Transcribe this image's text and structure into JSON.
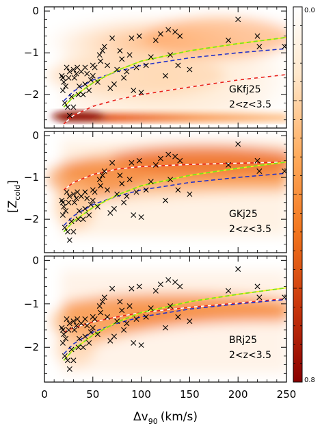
{
  "chart_data": {
    "type": "scatter",
    "xlabel": "Δv",
    "xlabel_sub": "90",
    "xlabel_unit": "(km/s)",
    "ylabel": "[Z",
    "ylabel_sub": "cold",
    "ylabel_close": "]",
    "xlim": [
      0,
      250
    ],
    "ylim": [
      -2.8,
      0.1
    ],
    "x_ticks": [
      0,
      50,
      100,
      150,
      200,
      250
    ],
    "y_ticks": [
      0,
      -1,
      -2
    ],
    "colorbar": {
      "min_label": "0.0",
      "max_label": "0.8",
      "range": [
        0.0,
        0.8
      ],
      "colormap": "white-orange-darkred"
    },
    "colors": {
      "observed_marker": "#000000",
      "red_curve": "#e8231c",
      "blue_curve": "#2332c8",
      "green_curve": "#7ce01e"
    },
    "observed": {
      "x": [
        18,
        20,
        19,
        21,
        23,
        22,
        25,
        26,
        28,
        30,
        31,
        33,
        34,
        36,
        38,
        40,
        42,
        44,
        46,
        48,
        50,
        52,
        55,
        57,
        58,
        60,
        62,
        65,
        68,
        70,
        72,
        75,
        78,
        80,
        82,
        85,
        88,
        90,
        92,
        95,
        98,
        100,
        105,
        110,
        115,
        120,
        125,
        128,
        130,
        135,
        138,
        140,
        150,
        190,
        200,
        220,
        222,
        248,
        26,
        35,
        42,
        30,
        50,
        19,
        24
      ],
      "y": [
        -1.55,
        -1.7,
        -1.9,
        -2.2,
        -1.35,
        -1.8,
        -1.6,
        -1.45,
        -2.05,
        -1.4,
        -1.6,
        -1.5,
        -1.35,
        -1.8,
        -1.45,
        -2.0,
        -1.75,
        -1.5,
        -1.9,
        -1.65,
        -1.55,
        -1.35,
        -1.7,
        -1.05,
        -1.2,
        -0.95,
        -0.85,
        -1.3,
        -1.85,
        -0.65,
        -1.75,
        -1.4,
        -0.95,
        -1.15,
        -1.6,
        -1.45,
        -1.05,
        -0.65,
        -1.9,
        -1.35,
        -0.6,
        -1.95,
        -1.3,
        -1.1,
        -0.7,
        -0.55,
        -1.55,
        -0.45,
        -1.05,
        -0.5,
        -1.3,
        -0.6,
        -1.4,
        -0.7,
        -0.2,
        -0.6,
        -0.85,
        -0.85,
        -2.5,
        -2.0,
        -1.35,
        -2.3,
        -1.3,
        -1.6,
        -2.3
      ]
    },
    "panels": [
      {
        "name_main": "GKfj25",
        "redshift_label": "2<z<3.5",
        "red_curve": [
          [
            20,
            -2.7
          ],
          [
            30,
            -2.5
          ],
          [
            50,
            -2.28
          ],
          [
            75,
            -2.12
          ],
          [
            100,
            -2.0
          ],
          [
            150,
            -1.82
          ],
          [
            200,
            -1.65
          ],
          [
            250,
            -1.52
          ]
        ]
      },
      {
        "name_main": "GKj25",
        "redshift_label": "2<z<3.5",
        "red_curve": [
          [
            20,
            -1.3
          ],
          [
            30,
            -1.12
          ],
          [
            50,
            -0.93
          ],
          [
            75,
            -0.8
          ],
          [
            100,
            -0.74
          ],
          [
            150,
            -0.69
          ],
          [
            200,
            -0.66
          ],
          [
            250,
            -0.63
          ]
        ]
      },
      {
        "name_main": "BRj25",
        "redshift_label": "2<z<3.5",
        "red_curve": [
          [
            20,
            -1.65
          ],
          [
            30,
            -1.55
          ],
          [
            50,
            -1.42
          ],
          [
            75,
            -1.3
          ],
          [
            100,
            -1.2
          ],
          [
            150,
            -1.08
          ],
          [
            200,
            -0.98
          ],
          [
            250,
            -0.88
          ]
        ]
      }
    ],
    "blue_curve": [
      [
        20,
        -2.15
      ],
      [
        30,
        -1.92
      ],
      [
        50,
        -1.65
      ],
      [
        75,
        -1.45
      ],
      [
        100,
        -1.3
      ],
      [
        150,
        -1.12
      ],
      [
        200,
        -1.0
      ],
      [
        250,
        -0.9
      ]
    ],
    "green_curve": [
      [
        20,
        -2.3
      ],
      [
        30,
        -2.05
      ],
      [
        50,
        -1.72
      ],
      [
        75,
        -1.42
      ],
      [
        100,
        -1.2
      ],
      [
        150,
        -0.95
      ],
      [
        200,
        -0.78
      ],
      [
        250,
        -0.63
      ]
    ]
  }
}
